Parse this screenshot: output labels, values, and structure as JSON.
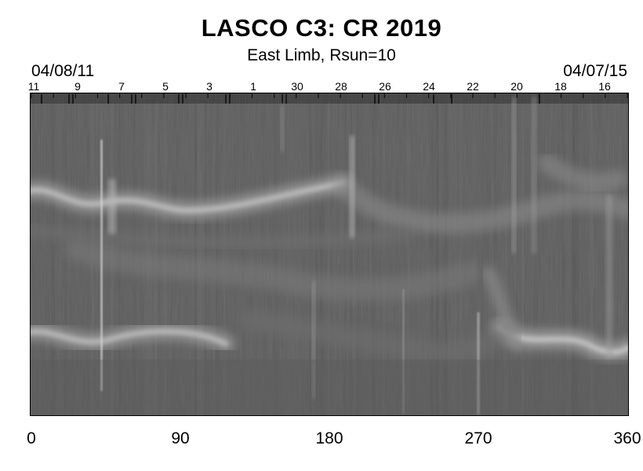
{
  "title": "LASCO C3: CR 2019",
  "subtitle": "East Limb, Rsun=10",
  "date_start": "04/08/11",
  "date_end": "04/07/15",
  "top_day_labels": [
    "11",
    "9",
    "7",
    "5",
    "3",
    "1",
    "30",
    "28",
    "26",
    "24",
    "22",
    "20",
    "18",
    "16"
  ],
  "x_axis": {
    "range": [
      0,
      360
    ],
    "tick_labels": [
      "0",
      "90",
      "180",
      "270",
      "360"
    ]
  },
  "colors": {
    "background": "#ffffff",
    "image_base": "#5f5f5f",
    "text": "#000000"
  }
}
